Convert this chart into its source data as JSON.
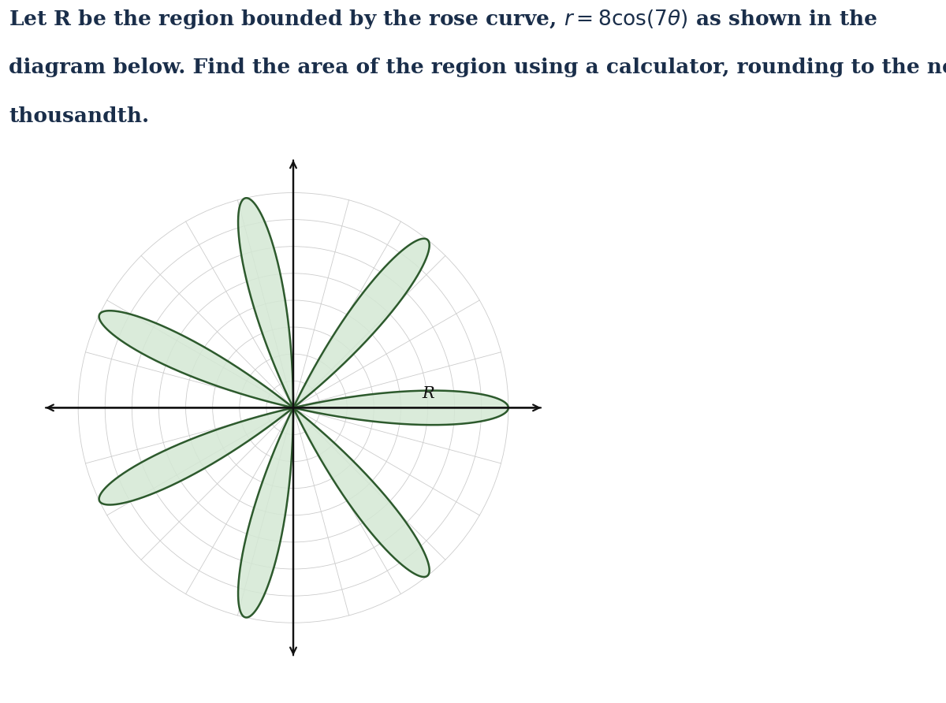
{
  "title_fontsize": 19,
  "title_color": "#1a2e4a",
  "rose_amplitude": 8,
  "rose_n": 7,
  "fill_color": "#d4e8d4",
  "fill_alpha": 0.85,
  "edge_color": "#2d5a2d",
  "edge_linewidth": 1.8,
  "grid_color": "#cccccc",
  "grid_linewidth": 0.6,
  "axis_color": "#111111",
  "axis_linewidth": 1.6,
  "label_R": "R",
  "label_fontsize": 15,
  "num_circles": 8,
  "num_radial_lines": 12,
  "plot_xlim": [
    -9.5,
    9.5
  ],
  "plot_ylim": [
    -9.5,
    9.5
  ],
  "figure_width": 12,
  "figure_height": 8.92,
  "background_color": "#ffffff",
  "line1": "Let R be the region bounded by the rose curve, $r = 8\\cos(7\\theta)$ as shown in the",
  "line2": "diagram below. Find the area of the region using a calculator, rounding to the nearest",
  "line3": "thousandth."
}
